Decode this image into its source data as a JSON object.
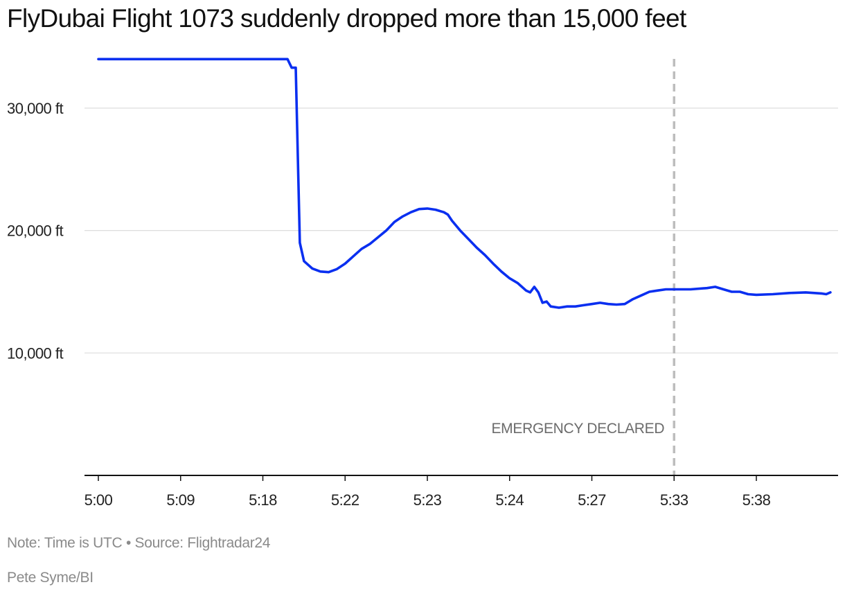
{
  "title": "FlyDubai Flight 1073 suddenly dropped more than 15,000 feet",
  "footer": {
    "note": "Note: Time is UTC • Source: Flightradar24",
    "credit": "Pete Syme/BI"
  },
  "colors": {
    "line": "#0a2ff0",
    "grid": "#dddddd",
    "axis": "#111111",
    "marker": "#bdbdbd"
  },
  "chart_data": {
    "type": "line",
    "title": "FlyDubai Flight 1073 suddenly dropped more than 15,000 feet",
    "xlabel": "",
    "ylabel": "",
    "ylim": [
      0,
      34000
    ],
    "yticks": [
      {
        "value": 10000,
        "label": "10,000 ft"
      },
      {
        "value": 20000,
        "label": "20,000 ft"
      },
      {
        "value": 30000,
        "label": "30,000 ft"
      }
    ],
    "xlim": [
      0,
      8.97
    ],
    "xticks": [
      "5:00",
      "5:09",
      "5:18",
      "5:22",
      "5:23",
      "5:24",
      "5:27",
      "5:33",
      "5:38"
    ],
    "x_axis_note": "Tick labels are evenly spaced (ordinal); x values below are positions in tick-index units",
    "grid": "horizontal",
    "annotation": {
      "label": "EMERGENCY DECLARED",
      "x": 7.0,
      "style": "dashed vertical line"
    },
    "series": [
      {
        "values": [
          [
            0.0,
            34000
          ],
          [
            1.0,
            34000
          ],
          [
            2.0,
            34000
          ],
          [
            2.3,
            34000
          ],
          [
            2.35,
            33300
          ],
          [
            2.4,
            33300
          ],
          [
            2.45,
            19000
          ],
          [
            2.5,
            17500
          ],
          [
            2.6,
            16900
          ],
          [
            2.7,
            16650
          ],
          [
            2.8,
            16600
          ],
          [
            2.9,
            16850
          ],
          [
            3.0,
            17300
          ],
          [
            3.1,
            17900
          ],
          [
            3.2,
            18500
          ],
          [
            3.3,
            18900
          ],
          [
            3.4,
            19450
          ],
          [
            3.5,
            20000
          ],
          [
            3.6,
            20700
          ],
          [
            3.7,
            21150
          ],
          [
            3.8,
            21500
          ],
          [
            3.9,
            21750
          ],
          [
            4.0,
            21800
          ],
          [
            4.1,
            21700
          ],
          [
            4.2,
            21500
          ],
          [
            4.25,
            21300
          ],
          [
            4.3,
            20800
          ],
          [
            4.4,
            20000
          ],
          [
            4.5,
            19300
          ],
          [
            4.6,
            18600
          ],
          [
            4.7,
            18000
          ],
          [
            4.8,
            17300
          ],
          [
            4.9,
            16650
          ],
          [
            5.0,
            16100
          ],
          [
            5.1,
            15700
          ],
          [
            5.2,
            15100
          ],
          [
            5.25,
            14950
          ],
          [
            5.3,
            15400
          ],
          [
            5.35,
            14950
          ],
          [
            5.4,
            14100
          ],
          [
            5.45,
            14200
          ],
          [
            5.5,
            13800
          ],
          [
            5.6,
            13700
          ],
          [
            5.7,
            13800
          ],
          [
            5.8,
            13800
          ],
          [
            5.9,
            13900
          ],
          [
            6.0,
            14000
          ],
          [
            6.1,
            14100
          ],
          [
            6.2,
            14000
          ],
          [
            6.3,
            13950
          ],
          [
            6.4,
            14000
          ],
          [
            6.5,
            14400
          ],
          [
            6.6,
            14700
          ],
          [
            6.7,
            15000
          ],
          [
            6.8,
            15100
          ],
          [
            6.9,
            15200
          ],
          [
            7.0,
            15200
          ],
          [
            7.2,
            15200
          ],
          [
            7.4,
            15300
          ],
          [
            7.5,
            15400
          ],
          [
            7.6,
            15200
          ],
          [
            7.7,
            15000
          ],
          [
            7.8,
            15000
          ],
          [
            7.9,
            14800
          ],
          [
            8.0,
            14750
          ],
          [
            8.2,
            14800
          ],
          [
            8.4,
            14900
          ],
          [
            8.6,
            14950
          ],
          [
            8.8,
            14850
          ],
          [
            8.85,
            14800
          ],
          [
            8.9,
            14950
          ]
        ]
      }
    ]
  }
}
